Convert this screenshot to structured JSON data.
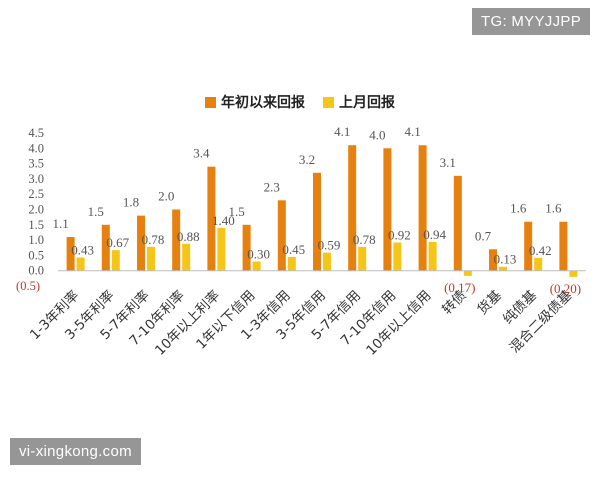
{
  "watermarks": {
    "top": "TG: MYYJJPP",
    "bottom": "vi-xingkong.com"
  },
  "colors": {
    "series1": "#E6800E",
    "series2": "#F5C518",
    "negative_label": "#C0392B"
  },
  "chart_data": {
    "type": "bar",
    "title": "",
    "xlabel": "",
    "ylabel": "",
    "ylim": [
      -0.5,
      4.5
    ],
    "yticks": [
      "4.5",
      "4.0",
      "3.5",
      "3.0",
      "2.5",
      "2.0",
      "1.5",
      "1.0",
      "0.5",
      "0.0",
      "(0.5)"
    ],
    "legend_position": "top-center",
    "grid": false,
    "categories": [
      "1-3年利率",
      "3-5年利率",
      "5-7年利率",
      "7-10年利率",
      "10年以上利率",
      "1年以下信用",
      "1-3年信用",
      "3-5年信用",
      "5-7年信用",
      "7-10年信用",
      "10年以上信用",
      "转债",
      "货基",
      "纯债基",
      "混合二级债基"
    ],
    "series": [
      {
        "name": "年初以来回报",
        "values": [
          1.1,
          1.5,
          1.8,
          2.0,
          3.4,
          1.5,
          2.3,
          3.2,
          4.1,
          4.0,
          4.1,
          3.1,
          0.7,
          1.6,
          1.6
        ],
        "labels": [
          "1.1",
          "1.5",
          "1.8",
          "2.0",
          "3.4",
          "1.5",
          "2.3",
          "3.2",
          "4.1",
          "4.0",
          "4.1",
          "3.1",
          "0.7",
          "1.6",
          "1.6"
        ]
      },
      {
        "name": "上月回报",
        "values": [
          0.43,
          0.67,
          0.78,
          0.88,
          1.4,
          0.3,
          0.45,
          0.59,
          0.78,
          0.92,
          0.94,
          -0.17,
          0.13,
          0.42,
          -0.2
        ],
        "labels": [
          "0.43",
          "0.67",
          "0.78",
          "0.88",
          "1.40",
          "0.30",
          "0.45",
          "0.59",
          "0.78",
          "0.92",
          "0.94",
          "(0.17)",
          "0.13",
          "0.42",
          "(0.20)"
        ]
      }
    ]
  }
}
